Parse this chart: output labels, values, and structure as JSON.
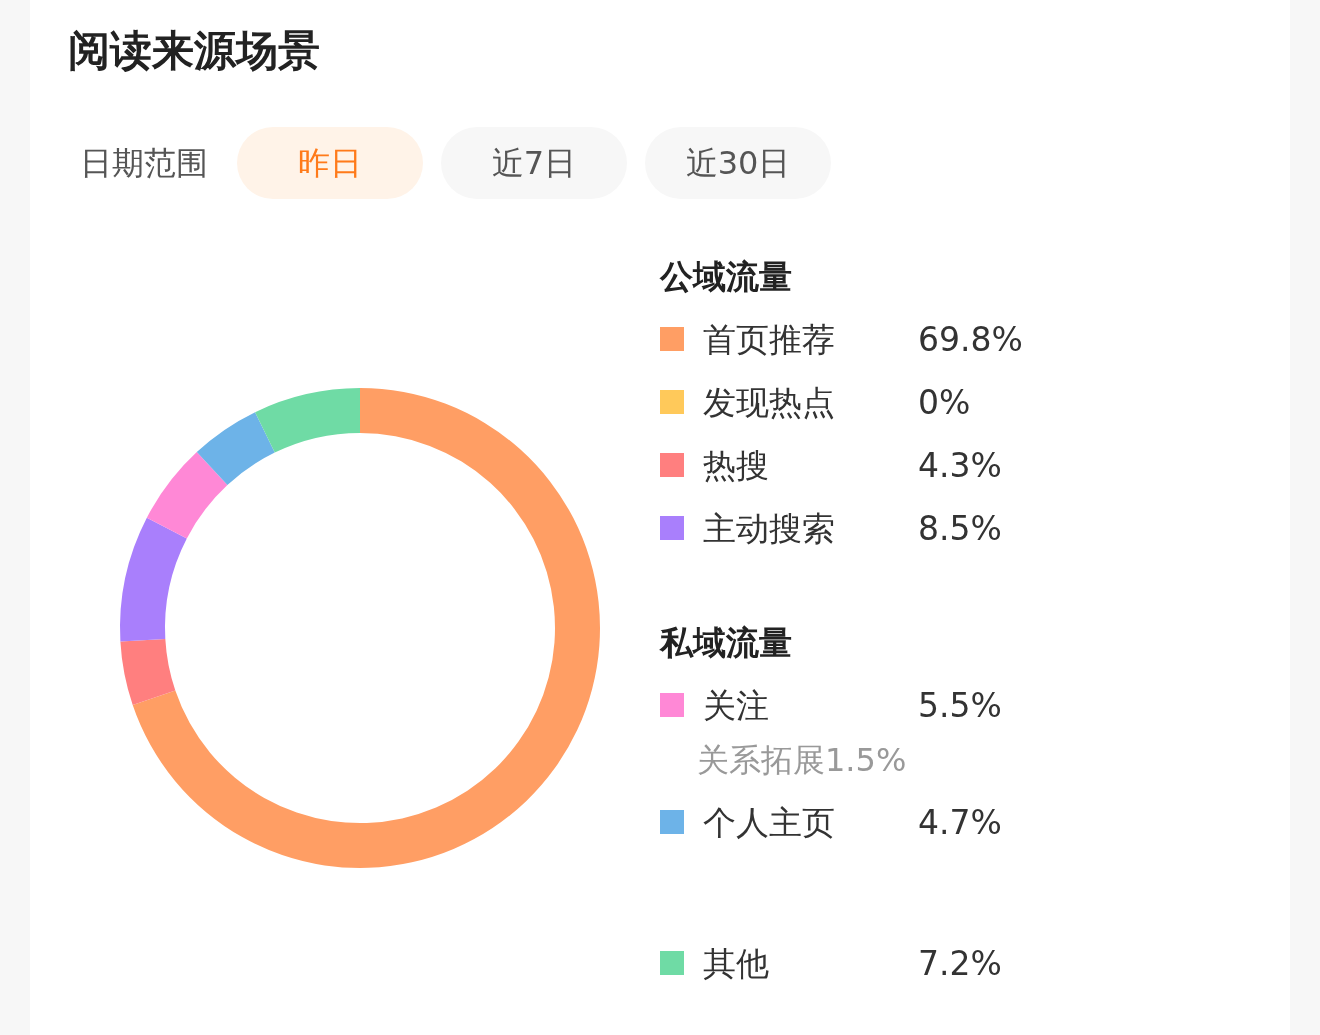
{
  "chart_data": {
    "type": "donut",
    "title": "阅读来源场景",
    "categories": [
      "首页推荐",
      "发现热点",
      "热搜",
      "主动搜索",
      "关注",
      "个人主页",
      "其他"
    ],
    "values": [
      69.8,
      0,
      4.3,
      8.5,
      5.5,
      4.7,
      7.2
    ],
    "value_labels": [
      "69.8%",
      "0%",
      "4.3%",
      "8.5%",
      "5.5%",
      "4.7%",
      "7.2%"
    ],
    "colors": [
      "#ff9e64",
      "#ffc95a",
      "#ff7f7f",
      "#a97ffc",
      "#ff88d6",
      "#6db3e8",
      "#6fdba5"
    ],
    "legend": "right",
    "annotations": [
      "日期范围",
      "昨日",
      "近7日",
      "近30日",
      "公域流量",
      "私域流量",
      "关系拓展1.5%"
    ]
  }
}
